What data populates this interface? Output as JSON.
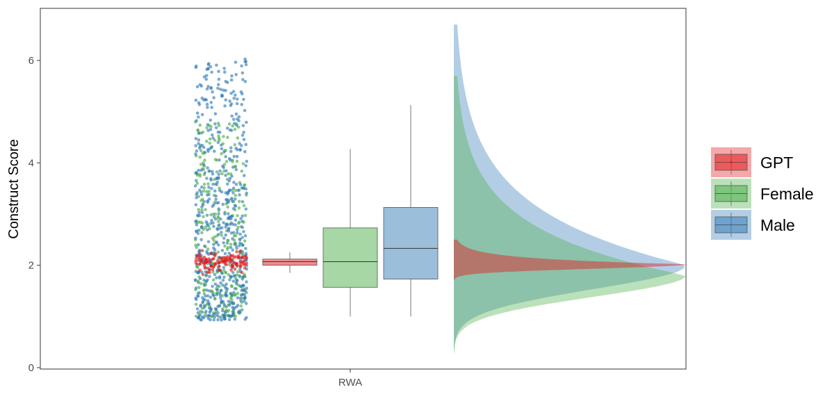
{
  "chart_data": {
    "type": "raincloud",
    "ylabel": "Construct Score",
    "xlabel": "",
    "categories": [
      "RWA"
    ],
    "ylim": [
      0,
      6.8
    ],
    "yticks": [
      0,
      2,
      4,
      6
    ],
    "grid": false,
    "legend_position": "right",
    "series": [
      {
        "name": "GPT",
        "color": "#E41A1C",
        "box": {
          "min": 1.85,
          "q1": 2.0,
          "median": 2.07,
          "q3": 2.12,
          "max": 2.25
        },
        "points": {
          "count": 110,
          "min": 1.8,
          "max": 2.35
        },
        "density": {
          "min": 1.7,
          "max": 2.5,
          "peak": 2.02,
          "peak_density": 1.0
        }
      },
      {
        "name": "Female",
        "color": "#4DAF4A",
        "box": {
          "min": 1.0,
          "q1": 1.57,
          "median": 2.07,
          "q3": 2.73,
          "max": 4.27
        },
        "points": {
          "count": 300,
          "min": 1.0,
          "max": 4.8
        },
        "density": {
          "min": 0.28,
          "max": 5.7,
          "peak": 1.8,
          "peak_density": 1.0
        }
      },
      {
        "name": "Male",
        "color": "#377EB8",
        "box": {
          "min": 1.0,
          "q1": 1.73,
          "median": 2.33,
          "q3": 3.13,
          "max": 5.13
        },
        "points": {
          "count": 560,
          "min": 0.92,
          "max": 6.03
        },
        "density": {
          "min": 0.3,
          "max": 6.7,
          "peak": 2.0,
          "peak_density": 1.0
        }
      }
    ]
  }
}
